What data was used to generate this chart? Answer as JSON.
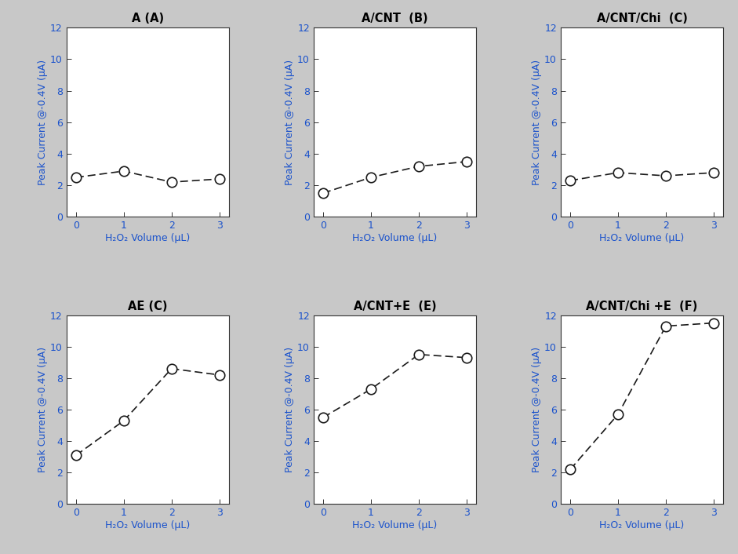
{
  "subplots": [
    {
      "title": "A (A)",
      "x": [
        0,
        1,
        2,
        3
      ],
      "y": [
        2.5,
        2.9,
        2.2,
        2.4
      ],
      "row": 0,
      "col": 0
    },
    {
      "title": "A/CNT  (B)",
      "x": [
        0,
        1,
        2,
        3
      ],
      "y": [
        1.5,
        2.5,
        3.2,
        3.5
      ],
      "row": 0,
      "col": 1
    },
    {
      "title": "A/CNT/Chi  (C)",
      "x": [
        0,
        1,
        2,
        3
      ],
      "y": [
        2.3,
        2.8,
        2.6,
        2.8
      ],
      "row": 0,
      "col": 2
    },
    {
      "title": "AE (C)",
      "x": [
        0,
        1,
        2,
        3
      ],
      "y": [
        3.1,
        5.3,
        8.6,
        8.2
      ],
      "row": 1,
      "col": 0
    },
    {
      "title": "A/CNT+E  (E)",
      "x": [
        0,
        1,
        2,
        3
      ],
      "y": [
        5.5,
        7.3,
        9.5,
        9.3
      ],
      "row": 1,
      "col": 1
    },
    {
      "title": "A/CNT/Chi +E  (F)",
      "x": [
        0,
        1,
        2,
        3
      ],
      "y": [
        2.2,
        5.7,
        11.3,
        11.5
      ],
      "row": 1,
      "col": 2
    }
  ],
  "ylabel": "Peak Current @-0.4V (μA)",
  "xlabel": "H₂O₂ Volume (μL)",
  "ylim": [
    0,
    12
  ],
  "yticks": [
    0,
    2,
    4,
    6,
    8,
    10,
    12
  ],
  "xlim": [
    -0.2,
    3.2
  ],
  "xticks": [
    0,
    1,
    2,
    3
  ],
  "line_color": "#1a1a1a",
  "marker_edge_color": "#1a1a1a",
  "marker_face_color": "white",
  "figure_bg": "#c8c8c8",
  "axes_bg": "#ffffff",
  "title_color": "#000000",
  "axis_label_color": "#1a52cc",
  "tick_label_color": "#1a52cc",
  "title_fontsize": 10.5,
  "label_fontsize": 9,
  "tick_fontsize": 9
}
